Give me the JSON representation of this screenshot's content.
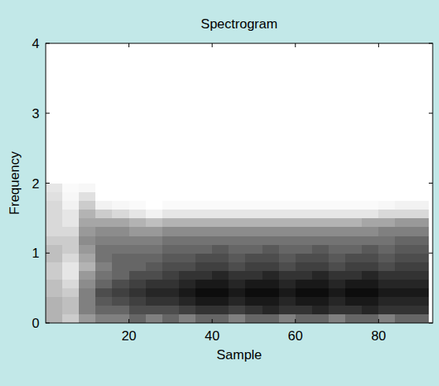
{
  "chart_data": {
    "type": "heatmap",
    "title": "Spectrogram",
    "x_label": "Sample",
    "y_label": "Frequency",
    "xlim": [
      0,
      93
    ],
    "ylim": [
      0,
      4
    ],
    "xticks": [
      20,
      40,
      60,
      80
    ],
    "yticks": [
      0,
      1,
      2,
      3,
      4
    ],
    "grid": false,
    "tick_labels": true,
    "x_edges": [
      0,
      4,
      8,
      12,
      16,
      20,
      24,
      28,
      32,
      36,
      40,
      44,
      48,
      52,
      56,
      60,
      64,
      68,
      72,
      76,
      80,
      84,
      88,
      92
    ],
    "y_edges": [
      0,
      0.125,
      0.25,
      0.375,
      0.5,
      0.625,
      0.75,
      0.875,
      1,
      1.125,
      1.25,
      1.375,
      1.5,
      1.625,
      1.75,
      1.875,
      2
    ],
    "cells": [
      [
        0.3,
        0.2,
        0.4,
        0.5,
        0.5,
        0.6,
        0.5,
        0.6,
        0.5,
        0.6,
        0.6,
        0.5,
        0.6,
        0.6,
        0.5,
        0.6,
        0.6,
        0.5,
        0.6,
        0.6,
        0.5,
        0.6,
        0.6
      ],
      [
        0.3,
        0.25,
        0.5,
        0.6,
        0.6,
        0.7,
        0.7,
        0.7,
        0.75,
        0.8,
        0.8,
        0.75,
        0.8,
        0.85,
        0.8,
        0.8,
        0.85,
        0.8,
        0.8,
        0.85,
        0.8,
        0.8,
        0.8
      ],
      [
        0.3,
        0.25,
        0.5,
        0.65,
        0.7,
        0.75,
        0.8,
        0.8,
        0.85,
        0.9,
        0.9,
        0.85,
        0.9,
        0.9,
        0.85,
        0.9,
        0.9,
        0.85,
        0.9,
        0.9,
        0.85,
        0.85,
        0.85
      ],
      [
        0.25,
        0.2,
        0.5,
        0.7,
        0.75,
        0.8,
        0.85,
        0.85,
        0.9,
        0.95,
        0.95,
        0.9,
        0.95,
        0.95,
        0.9,
        0.95,
        0.95,
        0.9,
        0.95,
        0.95,
        0.9,
        0.9,
        0.9
      ],
      [
        0.25,
        0.15,
        0.45,
        0.6,
        0.7,
        0.75,
        0.8,
        0.8,
        0.85,
        0.9,
        0.9,
        0.85,
        0.9,
        0.9,
        0.85,
        0.9,
        0.9,
        0.85,
        0.9,
        0.9,
        0.85,
        0.85,
        0.85
      ],
      [
        0.2,
        0.1,
        0.4,
        0.55,
        0.6,
        0.7,
        0.7,
        0.75,
        0.8,
        0.8,
        0.85,
        0.8,
        0.8,
        0.85,
        0.8,
        0.8,
        0.85,
        0.8,
        0.8,
        0.85,
        0.8,
        0.8,
        0.8
      ],
      [
        0.2,
        0.1,
        0.3,
        0.5,
        0.6,
        0.6,
        0.65,
        0.7,
        0.7,
        0.75,
        0.75,
        0.7,
        0.75,
        0.75,
        0.7,
        0.75,
        0.75,
        0.7,
        0.75,
        0.75,
        0.7,
        0.75,
        0.75
      ],
      [
        0.25,
        0.15,
        0.35,
        0.55,
        0.6,
        0.6,
        0.6,
        0.65,
        0.65,
        0.7,
        0.7,
        0.65,
        0.7,
        0.7,
        0.65,
        0.7,
        0.7,
        0.65,
        0.7,
        0.7,
        0.65,
        0.7,
        0.7
      ],
      [
        0.25,
        0.2,
        0.4,
        0.55,
        0.55,
        0.55,
        0.55,
        0.6,
        0.6,
        0.6,
        0.65,
        0.6,
        0.6,
        0.65,
        0.6,
        0.6,
        0.65,
        0.6,
        0.6,
        0.65,
        0.6,
        0.65,
        0.65
      ],
      [
        0.2,
        0.2,
        0.45,
        0.5,
        0.5,
        0.5,
        0.5,
        0.55,
        0.55,
        0.55,
        0.55,
        0.55,
        0.55,
        0.55,
        0.55,
        0.55,
        0.55,
        0.55,
        0.55,
        0.55,
        0.55,
        0.6,
        0.6
      ],
      [
        0.15,
        0.15,
        0.4,
        0.45,
        0.45,
        0.4,
        0.4,
        0.45,
        0.45,
        0.45,
        0.45,
        0.45,
        0.45,
        0.45,
        0.45,
        0.45,
        0.45,
        0.45,
        0.45,
        0.45,
        0.5,
        0.5,
        0.5
      ],
      [
        0.15,
        0.1,
        0.35,
        0.35,
        0.35,
        0.3,
        0.25,
        0.3,
        0.3,
        0.3,
        0.3,
        0.3,
        0.3,
        0.3,
        0.3,
        0.3,
        0.3,
        0.3,
        0.3,
        0.35,
        0.35,
        0.4,
        0.4
      ],
      [
        0.15,
        0.1,
        0.3,
        0.2,
        0.15,
        0.1,
        0.05,
        0.1,
        0.1,
        0.1,
        0.1,
        0.1,
        0.1,
        0.1,
        0.1,
        0.1,
        0.1,
        0.1,
        0.1,
        0.1,
        0.15,
        0.15,
        0.15
      ],
      [
        0.15,
        0.05,
        0.2,
        0.05,
        0.03,
        0.02,
        0,
        0.02,
        0.02,
        0.02,
        0.02,
        0.02,
        0.02,
        0.02,
        0.02,
        0.02,
        0.02,
        0.02,
        0.02,
        0.02,
        0.03,
        0.05,
        0.05
      ],
      [
        0.12,
        0.03,
        0.12,
        0,
        0,
        0,
        0,
        0,
        0,
        0,
        0,
        0,
        0,
        0,
        0,
        0,
        0,
        0,
        0,
        0,
        0,
        0,
        0
      ],
      [
        0.1,
        0.02,
        0.03,
        0,
        0,
        0,
        0,
        0,
        0,
        0,
        0,
        0,
        0,
        0,
        0,
        0,
        0,
        0,
        0,
        0,
        0,
        0,
        0
      ]
    ]
  }
}
